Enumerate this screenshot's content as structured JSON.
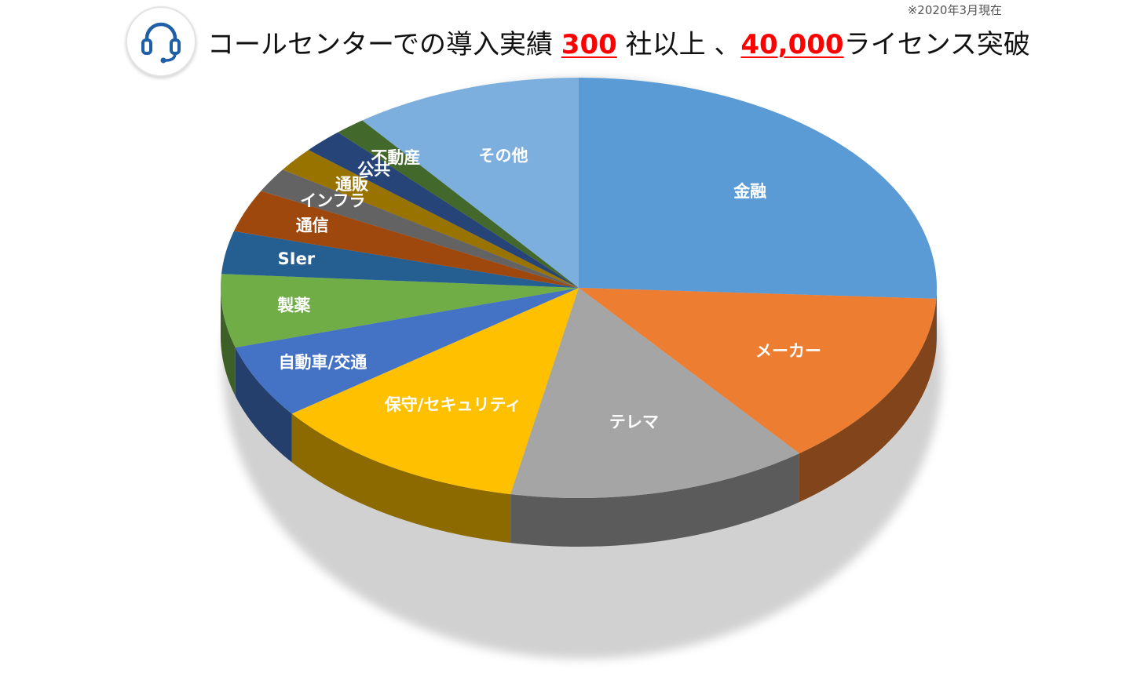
{
  "note": "※2020年3月現在",
  "header": {
    "title_part1": "コールセンターでの導入実績",
    "title_num1": "300",
    "title_part2": "社以上",
    "title_sep": "、",
    "title_num2": "40,000",
    "title_part3": "ライセンス突破",
    "icon": "headset-icon",
    "icon_color": "#1f5fa8"
  },
  "chart_data": {
    "type": "pie",
    "title": "",
    "start_angle": 0,
    "direction": "clockwise",
    "slices": [
      {
        "label": "金融",
        "value": 27.5,
        "color": "#5b9bd5"
      },
      {
        "label": "メーカー",
        "value": 14.5,
        "color": "#ed7d31"
      },
      {
        "label": "テレマ",
        "value": 14.5,
        "color": "#a5a5a5"
      },
      {
        "label": "保守/セキュリティ",
        "value": 12.5,
        "color": "#ffc000"
      },
      {
        "label": "自動車/交通",
        "value": 6.0,
        "color": "#4472c4"
      },
      {
        "label": "製薬",
        "value": 6.0,
        "color": "#70ad47"
      },
      {
        "label": "SIer",
        "value": 3.5,
        "color": "#255e91"
      },
      {
        "label": "通信",
        "value": 3.5,
        "color": "#9e480e"
      },
      {
        "label": "インフラ",
        "value": 2.0,
        "color": "#636363"
      },
      {
        "label": "通販",
        "value": 2.0,
        "color": "#997300"
      },
      {
        "label": "公共",
        "value": 2.0,
        "color": "#264478"
      },
      {
        "label": "不動産",
        "value": 1.5,
        "color": "#43682b"
      },
      {
        "label": "その他",
        "value": 11.0,
        "color": "#7cafdd"
      }
    ]
  }
}
